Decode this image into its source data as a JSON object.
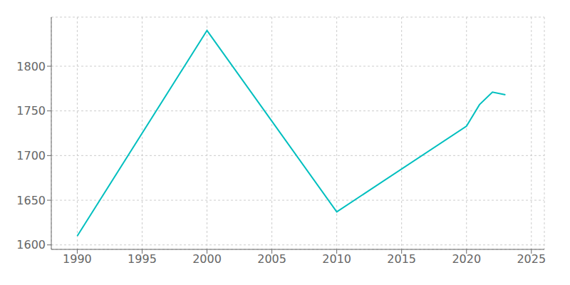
{
  "chart_data": {
    "type": "line",
    "x": [
      1990,
      2000,
      2010,
      2020,
      2021,
      2022,
      2023
    ],
    "values": [
      1610,
      1840,
      1637,
      1733,
      1757,
      1771,
      1768
    ],
    "color": "#00BFBF",
    "xlim": [
      1988,
      2026
    ],
    "ylim": [
      1595,
      1855
    ],
    "xticks": [
      1990,
      1995,
      2000,
      2005,
      2010,
      2015,
      2020,
      2025
    ],
    "yticks": [
      1600,
      1650,
      1700,
      1750,
      1800
    ],
    "grid": true
  }
}
